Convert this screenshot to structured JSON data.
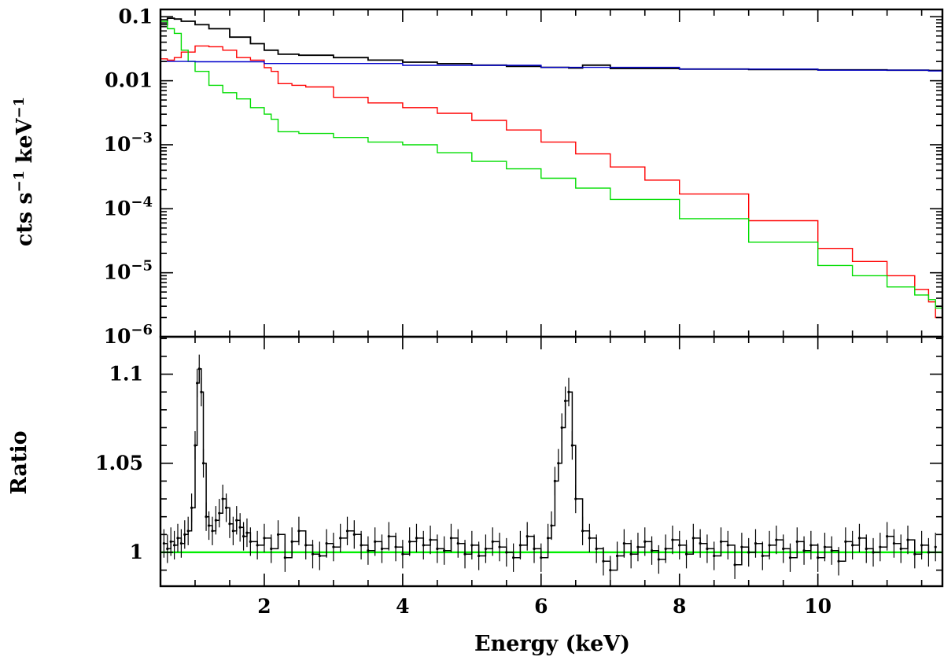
{
  "chart_data": [
    {
      "panel": "top",
      "type": "line",
      "x_scale": "linear",
      "y_scale": "log",
      "xlim": [
        0.5,
        11.8
      ],
      "ylim": [
        1e-06,
        0.13
      ],
      "ylabel": "cts s⁻¹ keV⁻¹",
      "ylabel_parts": {
        "a": "cts s",
        "exp1": "−1",
        "b": " keV",
        "exp2": "−1"
      },
      "y_ticks": [
        {
          "v": 0.1,
          "label": "0.1"
        },
        {
          "v": 0.01,
          "label": "0.01"
        },
        {
          "v": 0.001,
          "base": "10",
          "exp": "−3"
        },
        {
          "v": 0.0001,
          "base": "10",
          "exp": "−4"
        },
        {
          "v": 1e-05,
          "base": "10",
          "exp": "−5"
        },
        {
          "v": 1e-06,
          "base": "10",
          "exp": "−6"
        }
      ],
      "series": [
        {
          "name": "total",
          "color": "#000000",
          "x": [
            0.5,
            0.6,
            0.7,
            0.8,
            1.0,
            1.2,
            1.5,
            1.8,
            2.0,
            2.2,
            2.5,
            3.0,
            3.5,
            4.0,
            4.5,
            5.0,
            5.5,
            6.0,
            6.4,
            6.6,
            7.0,
            8.0,
            9.0,
            10.0,
            11.0,
            11.6,
            11.8
          ],
          "y": [
            0.075,
            0.095,
            0.092,
            0.085,
            0.075,
            0.065,
            0.048,
            0.038,
            0.03,
            0.026,
            0.025,
            0.023,
            0.021,
            0.0195,
            0.0185,
            0.0175,
            0.0168,
            0.0162,
            0.0158,
            0.0175,
            0.0155,
            0.0152,
            0.015,
            0.0148,
            0.0146,
            0.0145,
            0.013
          ]
        },
        {
          "name": "red component",
          "color": "#ff0000",
          "x": [
            0.5,
            0.6,
            0.7,
            0.8,
            1.0,
            1.2,
            1.4,
            1.6,
            1.8,
            2.0,
            2.1,
            2.2,
            2.4,
            2.6,
            3.0,
            3.5,
            4.0,
            4.5,
            5.0,
            5.5,
            6.0,
            6.5,
            7.0,
            7.5,
            8.0,
            9.0,
            10.0,
            10.5,
            11.0,
            11.4,
            11.6,
            11.7,
            11.8
          ],
          "y": [
            0.022,
            0.021,
            0.023,
            0.028,
            0.035,
            0.034,
            0.03,
            0.023,
            0.021,
            0.016,
            0.014,
            0.009,
            0.0085,
            0.008,
            0.0055,
            0.0045,
            0.0038,
            0.0031,
            0.0024,
            0.0017,
            0.0011,
            0.00072,
            0.00045,
            0.00028,
            0.00017,
            6.5e-05,
            2.4e-05,
            1.5e-05,
            9e-06,
            5.5e-06,
            3.5e-06,
            2e-06,
            1.5e-06
          ]
        },
        {
          "name": "green component",
          "color": "#00dd00",
          "x": [
            0.5,
            0.6,
            0.7,
            0.8,
            0.9,
            1.0,
            1.2,
            1.4,
            1.6,
            1.8,
            2.0,
            2.1,
            2.2,
            2.5,
            3.0,
            3.5,
            4.0,
            4.5,
            5.0,
            5.5,
            6.0,
            6.5,
            7.0,
            8.0,
            9.0,
            10.0,
            10.5,
            11.0,
            11.4,
            11.6,
            11.7,
            11.8
          ],
          "y": [
            0.085,
            0.065,
            0.055,
            0.03,
            0.02,
            0.014,
            0.0085,
            0.0065,
            0.0052,
            0.0038,
            0.003,
            0.0025,
            0.0016,
            0.0015,
            0.0013,
            0.0011,
            0.001,
            0.00075,
            0.00055,
            0.00042,
            0.0003,
            0.00021,
            0.00014,
            7e-05,
            3e-05,
            1.3e-05,
            9e-06,
            6e-06,
            4.5e-06,
            3.8e-06,
            2.8e-06,
            2e-06
          ]
        },
        {
          "name": "blue component",
          "color": "#0000cc",
          "x": [
            0.5,
            1.0,
            2.0,
            4.0,
            6.0,
            8.0,
            10.0,
            11.6,
            11.8
          ],
          "y": [
            0.02,
            0.0198,
            0.0186,
            0.0174,
            0.0162,
            0.0152,
            0.0146,
            0.0142,
            0.011
          ]
        }
      ]
    },
    {
      "panel": "bottom",
      "type": "line",
      "x_scale": "linear",
      "y_scale": "linear",
      "xlim": [
        0.5,
        11.8
      ],
      "ylim": [
        0.981,
        1.121
      ],
      "xlabel": "Energy (keV)",
      "ylabel": "Ratio",
      "x_ticks": [
        {
          "v": 2,
          "label": "2"
        },
        {
          "v": 4,
          "label": "4"
        },
        {
          "v": 6,
          "label": "6"
        },
        {
          "v": 8,
          "label": "8"
        },
        {
          "v": 10,
          "label": "10"
        }
      ],
      "y_ticks": [
        {
          "v": 1.0,
          "label": "1"
        },
        {
          "v": 1.05,
          "label": "1.05"
        },
        {
          "v": 1.1,
          "label": "1.1"
        }
      ],
      "reference_line": {
        "y": 1.0,
        "color": "#00ee00"
      },
      "series": [
        {
          "name": "data/model ratio",
          "color": "#000000",
          "error": 0.008,
          "x": [
            0.55,
            0.6,
            0.65,
            0.7,
            0.75,
            0.8,
            0.85,
            0.9,
            0.95,
            1.0,
            1.03,
            1.06,
            1.09,
            1.12,
            1.16,
            1.2,
            1.25,
            1.3,
            1.35,
            1.4,
            1.45,
            1.5,
            1.55,
            1.6,
            1.65,
            1.7,
            1.75,
            1.8,
            1.9,
            2.0,
            2.1,
            2.2,
            2.3,
            2.4,
            2.5,
            2.6,
            2.7,
            2.8,
            2.9,
            3.0,
            3.1,
            3.2,
            3.3,
            3.4,
            3.5,
            3.6,
            3.7,
            3.8,
            3.9,
            4.0,
            4.1,
            4.2,
            4.3,
            4.4,
            4.5,
            4.6,
            4.7,
            4.8,
            4.9,
            5.0,
            5.1,
            5.2,
            5.3,
            5.4,
            5.5,
            5.6,
            5.7,
            5.8,
            5.9,
            6.0,
            6.1,
            6.15,
            6.2,
            6.25,
            6.3,
            6.35,
            6.4,
            6.45,
            6.5,
            6.6,
            6.7,
            6.8,
            6.9,
            7.0,
            7.1,
            7.2,
            7.3,
            7.4,
            7.5,
            7.6,
            7.7,
            7.8,
            7.9,
            8.0,
            8.1,
            8.2,
            8.3,
            8.4,
            8.5,
            8.6,
            8.7,
            8.8,
            8.9,
            9.0,
            9.1,
            9.2,
            9.3,
            9.4,
            9.5,
            9.6,
            9.7,
            9.8,
            9.9,
            10.0,
            10.1,
            10.2,
            10.3,
            10.4,
            10.5,
            10.6,
            10.7,
            10.8,
            10.9,
            11.0,
            11.1,
            11.2,
            11.3,
            11.4,
            11.5,
            11.6,
            11.7
          ],
          "y": [
            1.005,
            1.002,
            1.006,
            1.004,
            1.008,
            1.005,
            1.01,
            1.012,
            1.025,
            1.06,
            1.095,
            1.103,
            1.09,
            1.05,
            1.02,
            1.015,
            1.012,
            1.018,
            1.022,
            1.03,
            1.025,
            1.016,
            1.012,
            1.018,
            1.014,
            1.009,
            1.011,
            1.006,
            1.004,
            1.008,
            1.002,
            1.01,
            0.997,
            1.006,
            1.012,
            1.004,
            0.999,
            0.998,
            1.005,
            1.003,
            1.008,
            1.012,
            1.01,
            1.004,
            1.001,
            1.006,
            1.002,
            1.009,
            1.003,
            0.999,
            1.006,
            1.008,
            1.004,
            1.007,
            1.002,
            1.001,
            1.008,
            1.005,
            0.999,
            1.004,
            0.998,
            1.002,
            1.006,
            1.003,
            1.0,
            0.997,
            1.004,
            1.009,
            1.002,
            0.997,
            1.008,
            1.015,
            1.04,
            1.05,
            1.07,
            1.085,
            1.09,
            1.06,
            1.03,
            1.012,
            1.008,
            1.002,
            0.995,
            0.99,
            0.998,
            1.005,
            0.999,
            1.003,
            1.006,
            1.001,
            0.996,
            1.002,
            1.007,
            1.004,
            0.999,
            1.008,
            1.005,
            1.002,
            0.998,
            1.006,
            1.004,
            0.993,
            1.003,
            1.0,
            1.005,
            0.998,
            1.004,
            1.007,
            1.002,
            0.997,
            1.006,
            1.001,
            1.004,
            0.997,
            1.003,
            1.001,
            0.995,
            1.006,
            1.004,
            1.008,
            1.002,
            1.0,
            1.003,
            1.009,
            1.005,
            1.002,
            1.007,
            0.999,
            1.004,
            1.0,
            1.003
          ]
        }
      ]
    }
  ]
}
